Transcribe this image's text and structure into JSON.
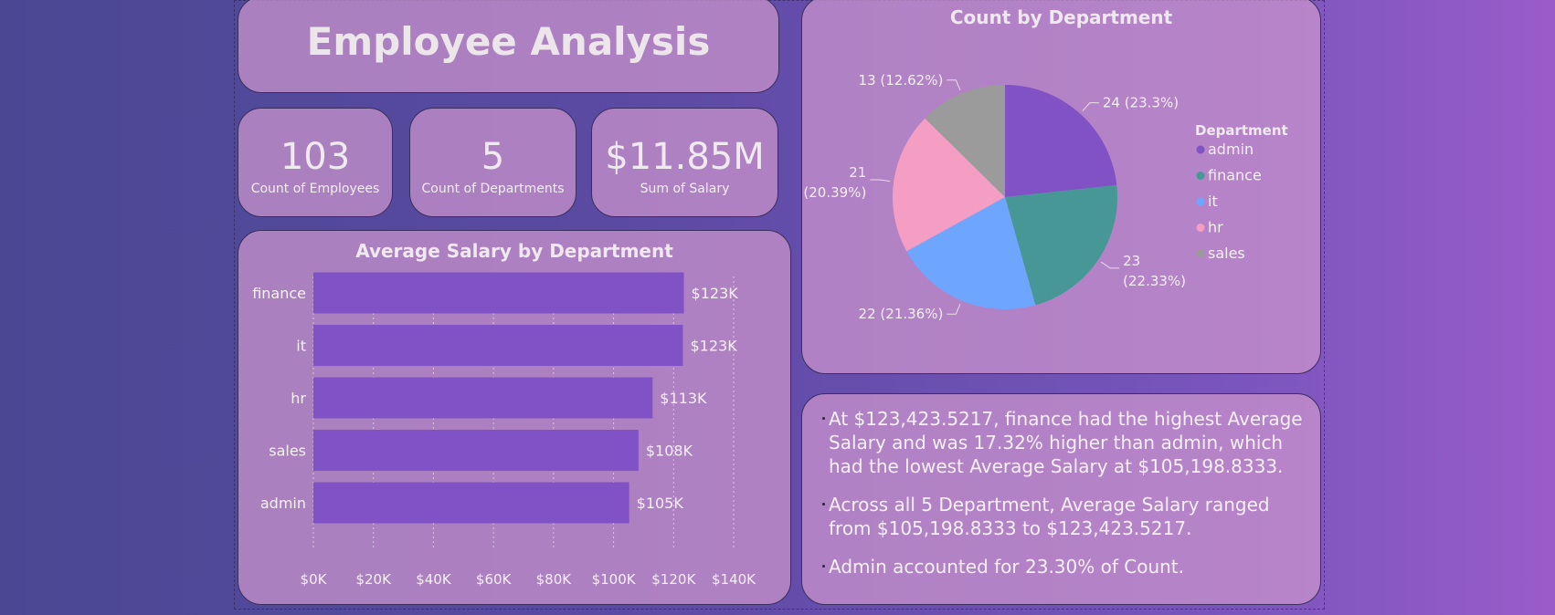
{
  "header": {
    "title": "Employee Analysis"
  },
  "kpis": [
    {
      "value": "103",
      "label": "Count of Employees"
    },
    {
      "value": "5",
      "label": "Count of Departments"
    },
    {
      "value": "$11.85M",
      "label": "Sum of Salary"
    }
  ],
  "chart_data": [
    {
      "type": "bar",
      "orientation": "horizontal",
      "title": "Average Salary by Department",
      "categories": [
        "finance",
        "it",
        "hr",
        "sales",
        "admin"
      ],
      "values": [
        123423.5217,
        123100,
        113000,
        108300,
        105198.8333
      ],
      "data_labels": [
        "$123K",
        "$123K",
        "$113K",
        "$108K",
        "$105K"
      ],
      "xlim": [
        0,
        140000
      ],
      "x_ticks": [
        0,
        20000,
        40000,
        60000,
        80000,
        100000,
        120000,
        140000
      ],
      "x_tick_labels": [
        "$0K",
        "$20K",
        "$40K",
        "$60K",
        "$80K",
        "$100K",
        "$120K",
        "$140K"
      ],
      "grid": true,
      "color": "#8152c6"
    },
    {
      "type": "pie",
      "title": "Count by Department",
      "legend_title": "Department",
      "legend_position": "right",
      "slices": [
        {
          "name": "admin",
          "value": 24,
          "label": "24 (23.3%)",
          "color": "#8152c6"
        },
        {
          "name": "finance",
          "value": 23,
          "label": "23 (22.33%)",
          "color": "#479797"
        },
        {
          "name": "it",
          "value": 22,
          "label": "22 (21.36%)",
          "color": "#6ea6ff"
        },
        {
          "name": "hr",
          "value": 21,
          "label": "21 (20.39%)",
          "color": "#f49ec4"
        },
        {
          "name": "sales",
          "value": 13,
          "label": "13 (12.62%)",
          "color": "#9b9b9b"
        }
      ]
    }
  ],
  "insights": [
    "At $123,423.5217, finance had the highest Average Salary and was 17.32% higher than admin, which had the lowest Average Salary at $105,198.8333.",
    "Across all 5 Department, Average Salary ranged from $105,198.8333 to $123,423.5217.",
    "Admin accounted for 23.30% of Count."
  ]
}
